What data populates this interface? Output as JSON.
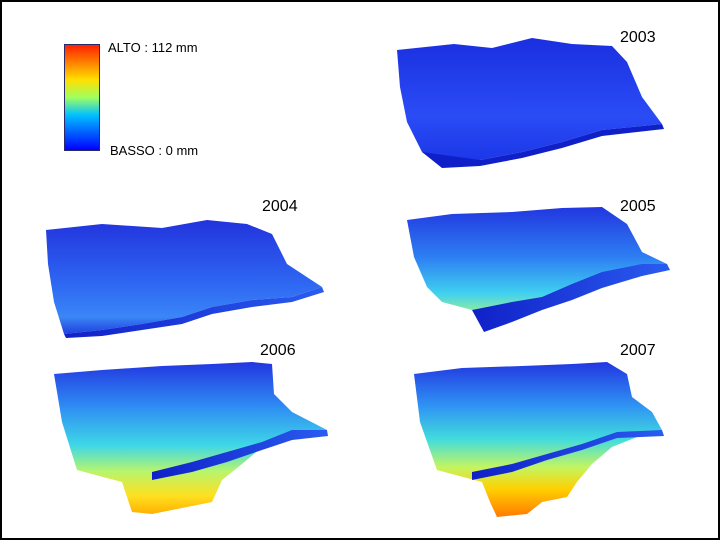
{
  "legend": {
    "high_label": "ALTO : 112 mm",
    "low_label": "BASSO : 0 mm",
    "colors": [
      "#0000ff",
      "#0060ff",
      "#00c0ff",
      "#a0ff60",
      "#ffe000",
      "#ff8000",
      "#ff2000"
    ]
  },
  "panels": [
    {
      "year": "2003",
      "intensity": 0.05
    },
    {
      "year": "2004",
      "intensity": 0.2
    },
    {
      "year": "2005",
      "intensity": 0.5
    },
    {
      "year": "2006",
      "intensity": 0.8
    },
    {
      "year": "2007",
      "intensity": 1.0
    }
  ]
}
